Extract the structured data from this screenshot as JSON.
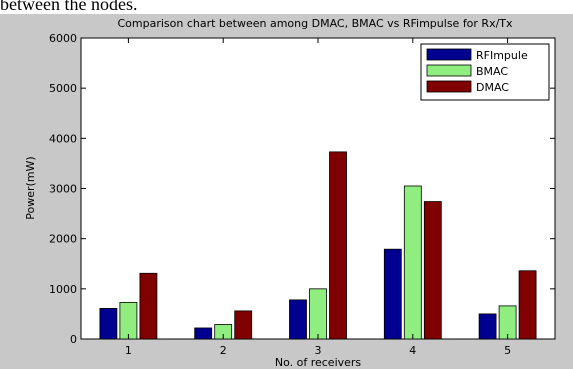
{
  "top_text": "between the nodes.",
  "chart_data": {
    "type": "bar",
    "title": "Comparison chart between among DMAC, BMAC vs RFimpulse for Rx/Tx",
    "xlabel": "No. of receivers",
    "ylabel": "Power(mW)",
    "categories": [
      "1",
      "2",
      "3",
      "4",
      "5"
    ],
    "ylim": [
      0,
      6000
    ],
    "yticks": [
      0,
      1000,
      2000,
      3000,
      4000,
      5000,
      6000
    ],
    "grid": false,
    "legend_position": "top-right",
    "series": [
      {
        "name": "RFImpule",
        "color": "#000090",
        "values": [
          610,
          220,
          780,
          1790,
          500
        ]
      },
      {
        "name": "BMAC",
        "color": "#90ee80",
        "values": [
          730,
          290,
          1000,
          3050,
          660
        ]
      },
      {
        "name": "DMAC",
        "color": "#800000",
        "values": [
          1310,
          560,
          3730,
          2740,
          1360
        ]
      }
    ]
  }
}
